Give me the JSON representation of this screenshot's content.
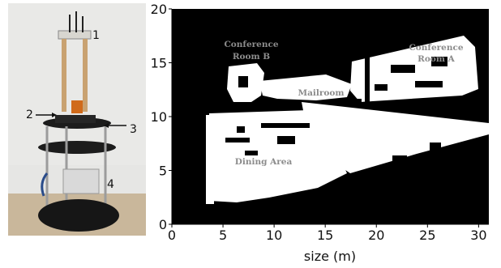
{
  "robot_photo": {
    "callouts": [
      "1",
      "2",
      "3",
      "4"
    ]
  },
  "map": {
    "xlabel": "size (m)",
    "x_ticks": [
      "0",
      "5",
      "10",
      "15",
      "20",
      "25",
      "30"
    ],
    "y_ticks": [
      "0",
      "5",
      "10",
      "15",
      "20"
    ],
    "x_range": [
      0,
      31
    ],
    "y_range": [
      0,
      20
    ],
    "room_labels": {
      "conference_b_line1": "Conference",
      "conference_b_line2": "Room B",
      "conference_a_line1": "Conference",
      "conference_a_line2": "Room A",
      "mailroom": "Mailroom",
      "dining_area": "Dining Area"
    },
    "colors": {
      "obstacle": "#000000",
      "free": "#ffffff",
      "room_label": "#8c8c8c"
    }
  }
}
